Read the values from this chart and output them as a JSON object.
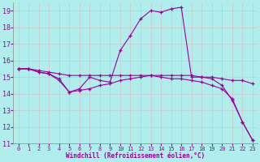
{
  "xlabel": "Windchill (Refroidissement éolien,°C)",
  "background_color": "#b2eded",
  "grid_color": "#c8c8c8",
  "line_color": "#990099",
  "xlim": [
    -0.5,
    23.5
  ],
  "ylim": [
    11,
    19.5
  ],
  "yticks": [
    11,
    12,
    13,
    14,
    15,
    16,
    17,
    18,
    19
  ],
  "xticks": [
    0,
    1,
    2,
    3,
    4,
    5,
    6,
    7,
    8,
    9,
    10,
    11,
    12,
    13,
    14,
    15,
    16,
    17,
    18,
    19,
    20,
    21,
    22,
    23
  ],
  "line1_x": [
    0,
    1,
    2,
    3,
    4,
    5,
    6,
    7,
    8,
    9,
    10,
    11,
    12,
    13,
    14,
    15,
    16,
    17,
    18,
    19,
    20,
    21,
    22,
    23
  ],
  "line1_y": [
    15.5,
    15.5,
    15.3,
    15.2,
    14.9,
    14.1,
    14.3,
    15.0,
    14.8,
    14.7,
    16.6,
    17.5,
    18.5,
    19.0,
    18.9,
    19.1,
    19.2,
    15.0,
    15.0,
    14.9,
    14.5,
    13.6,
    12.3,
    11.2
  ],
  "line2_x": [
    0,
    1,
    2,
    3,
    4,
    5,
    6,
    7,
    8,
    9,
    10,
    11,
    12,
    13,
    14,
    15,
    16,
    17,
    18,
    19,
    20,
    21,
    22,
    23
  ],
  "line2_y": [
    15.5,
    15.5,
    15.4,
    15.3,
    15.2,
    15.1,
    15.1,
    15.1,
    15.1,
    15.1,
    15.1,
    15.1,
    15.1,
    15.1,
    15.1,
    15.1,
    15.1,
    15.1,
    15.0,
    15.0,
    14.9,
    14.8,
    14.8,
    14.6
  ],
  "line3_x": [
    0,
    1,
    2,
    3,
    4,
    5,
    6,
    7,
    8,
    9,
    10,
    11,
    12,
    13,
    14,
    15,
    16,
    17,
    18,
    19,
    20,
    21,
    22,
    23
  ],
  "line3_y": [
    15.5,
    15.5,
    15.3,
    15.2,
    14.8,
    14.1,
    14.2,
    14.3,
    14.5,
    14.6,
    14.8,
    14.9,
    15.0,
    15.1,
    15.0,
    14.9,
    14.9,
    14.8,
    14.7,
    14.5,
    14.3,
    13.7,
    12.3,
    11.2
  ]
}
